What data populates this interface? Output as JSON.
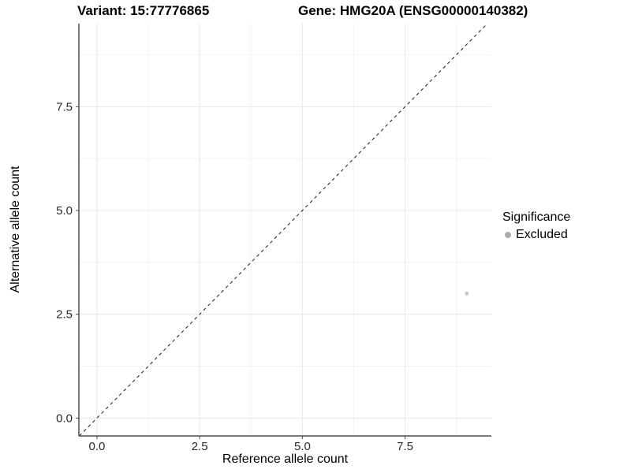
{
  "header": {
    "variant_title": "Variant: 15:77776865",
    "gene_title": "Gene: HMG20A (ENSG00000140382)"
  },
  "chart_data": {
    "type": "scatter",
    "xlabel": "Reference allele count",
    "ylabel": "Alternative allele count",
    "xlim": [
      -0.44,
      9.6
    ],
    "ylim": [
      -0.43,
      9.5
    ],
    "x_major_ticks": [
      0.0,
      2.5,
      5.0,
      7.5
    ],
    "y_major_ticks": [
      0.0,
      2.5,
      5.0,
      7.5
    ],
    "x_minor_ticks": [
      1.25,
      3.75,
      6.25,
      8.75
    ],
    "y_minor_ticks": [
      1.25,
      3.75,
      6.25,
      8.75
    ],
    "tick_decimals": 1,
    "grid": true,
    "series": [
      {
        "name": "Excluded",
        "color": "#c8c8c8",
        "marker_radius": 2.5,
        "points": [
          {
            "x": 9,
            "y": 3
          }
        ]
      }
    ],
    "reference_line": {
      "type": "identity",
      "slope": 1,
      "intercept": 0,
      "style": "dashed",
      "color": "#1a1a1a"
    },
    "legend": {
      "position": "right",
      "title": "Significance",
      "entries": [
        {
          "label": "Excluded",
          "color": "#ababab"
        }
      ]
    },
    "colors": {
      "axis_line": "#4d4d4d",
      "tick_text": "#2b2b2b",
      "grid_major": "#e8e8e8",
      "grid_minor": "#f4f4f4",
      "background": "#ffffff"
    }
  }
}
